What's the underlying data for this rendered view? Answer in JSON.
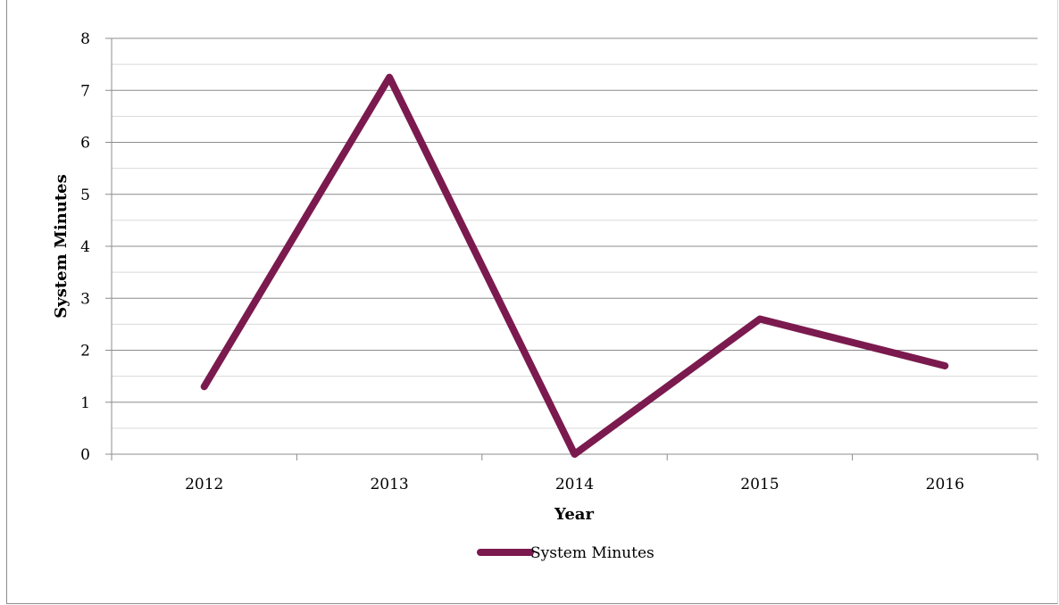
{
  "chart_data": {
    "type": "line",
    "title": "",
    "xlabel": "Year",
    "ylabel": "System Minutes",
    "categories": [
      "2012",
      "2013",
      "2014",
      "2015",
      "2016"
    ],
    "series": [
      {
        "name": "System Minutes",
        "color": "#7b1a4e",
        "values": [
          1.3,
          7.25,
          0.0,
          2.6,
          1.7
        ]
      }
    ],
    "ylim": [
      0,
      8
    ],
    "yticks": [
      "0",
      "1",
      "2",
      "3",
      "4",
      "5",
      "6",
      "7",
      "8"
    ],
    "major_grid_step": 1,
    "minor_grid_step": 0.5,
    "grid": true,
    "legend": "bottom-center"
  }
}
